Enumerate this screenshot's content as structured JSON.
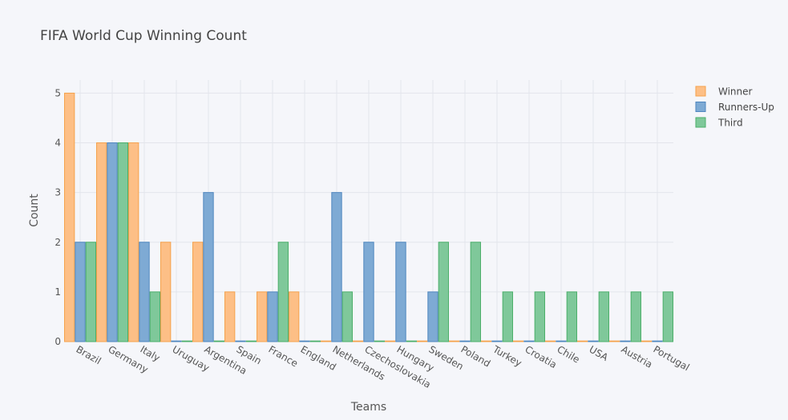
{
  "chart_data": {
    "type": "bar",
    "title": "FIFA World Cup Winning Count",
    "xlabel": "Teams",
    "ylabel": "Count",
    "ylim": [
      0,
      5.2
    ],
    "yticks": [
      0,
      1,
      2,
      3,
      4,
      5
    ],
    "grid": true,
    "legend": "top-right",
    "categories": [
      "Brazil",
      "Germany",
      "Italy",
      "Uruguay",
      "Argentina",
      "Spain",
      "France",
      "England",
      "Netherlands",
      "Czechoslovakia",
      "Hungary",
      "Sweden",
      "Poland",
      "Turkey",
      "Croatia",
      "Chile",
      "USA",
      "Austria",
      "Portugal"
    ],
    "series": [
      {
        "name": "Winner",
        "color": "#fdbf86",
        "stroke": "#f5a24c",
        "values": [
          5,
          4,
          4,
          2,
          2,
          1,
          1,
          1,
          0,
          0,
          0,
          0,
          0,
          0,
          0,
          0,
          0,
          0,
          0
        ]
      },
      {
        "name": "Runners-Up",
        "color": "#7eaad4",
        "stroke": "#4e86bf",
        "values": [
          2,
          4,
          2,
          0,
          3,
          0,
          1,
          0,
          3,
          2,
          2,
          1,
          0,
          0,
          0,
          0,
          0,
          0,
          0
        ]
      },
      {
        "name": "Third",
        "color": "#7fc89a",
        "stroke": "#4caf6a",
        "values": [
          2,
          4,
          1,
          0,
          0,
          0,
          2,
          0,
          1,
          0,
          0,
          2,
          2,
          1,
          1,
          1,
          1,
          1,
          1
        ]
      }
    ]
  }
}
